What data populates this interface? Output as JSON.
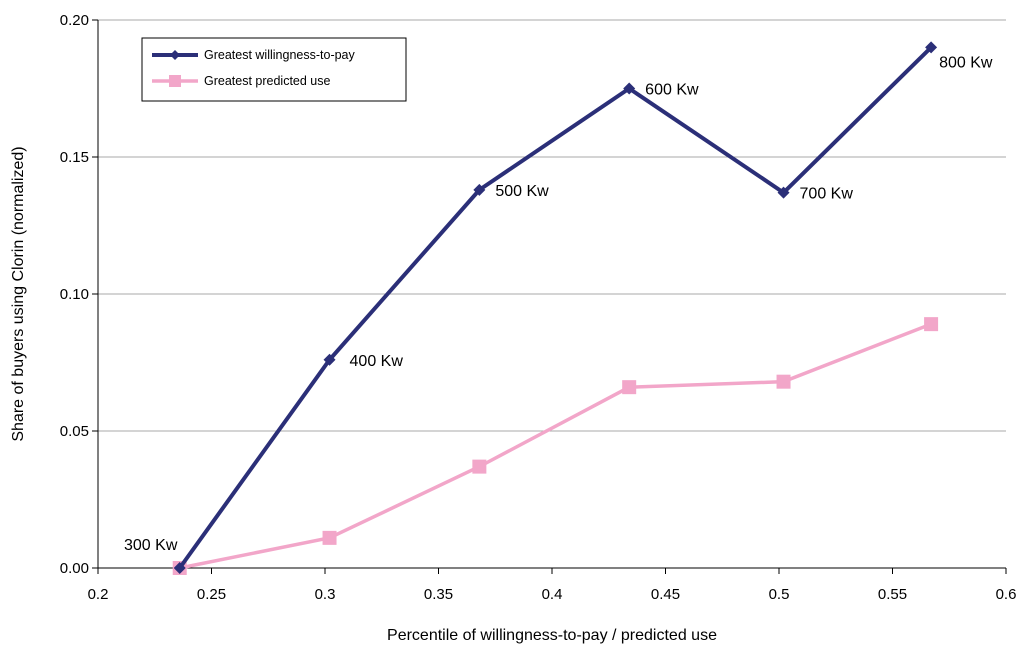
{
  "chart_data": {
    "type": "line",
    "xlabel": "Percentile of willingness-to-pay / predicted use",
    "ylabel": "Share of buyers using  Clorin (normalized)",
    "xlim": [
      0.2,
      0.6
    ],
    "ylim": [
      0,
      0.2
    ],
    "x_ticks": [
      "0.2",
      "0.25",
      "0.3",
      "0.35",
      "0.4",
      "0.45",
      "0.5",
      "0.55",
      "0.6"
    ],
    "y_ticks": [
      "0.00",
      "0.05",
      "0.10",
      "0.15",
      "0.20"
    ],
    "grid": "horizontal",
    "legend_position": "top-left",
    "series": [
      {
        "name": "Greatest willingness-to-pay",
        "color": "#2b2f78",
        "marker": "diamond",
        "x": [
          0.236,
          0.302,
          0.368,
          0.434,
          0.502,
          0.567
        ],
        "values": [
          0.0,
          0.076,
          0.138,
          0.175,
          0.137,
          0.19
        ],
        "point_labels": [
          "300 Kw",
          "400 Kw",
          "500 Kw",
          "600 Kw",
          "700 Kw",
          "800 Kw"
        ]
      },
      {
        "name": "Greatest predicted use",
        "color": "#f2a6c9",
        "marker": "square",
        "x": [
          0.236,
          0.302,
          0.368,
          0.434,
          0.502,
          0.567
        ],
        "values": [
          0.0,
          0.011,
          0.037,
          0.066,
          0.068,
          0.089
        ]
      }
    ]
  }
}
